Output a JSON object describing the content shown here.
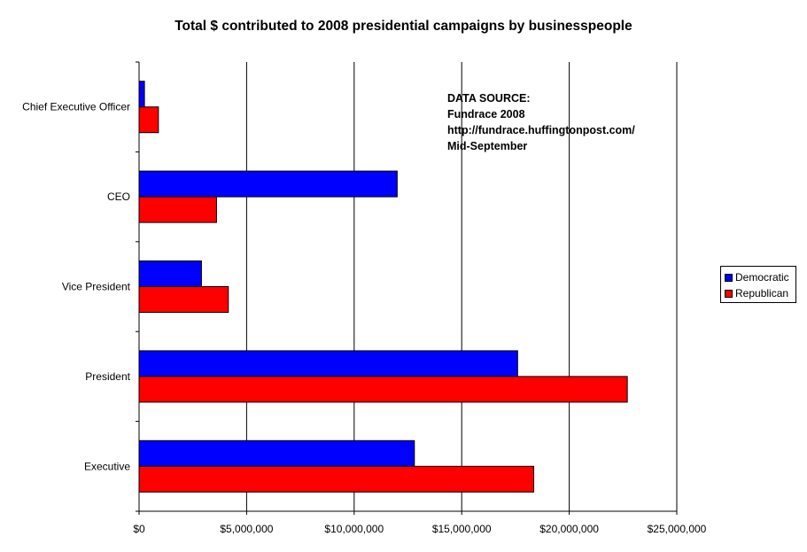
{
  "chart_data": {
    "type": "bar",
    "orientation": "horizontal",
    "title": "Total $ contributed to 2008 presidential campaigns by businesspeople",
    "categories": [
      "Chief Executive Officer",
      "CEO",
      "Vice President",
      "President",
      "Executive"
    ],
    "series": [
      {
        "name": "Democratic",
        "color": "#0000ff",
        "values": [
          250000,
          12000000,
          2900000,
          17600000,
          12800000
        ]
      },
      {
        "name": "Republican",
        "color": "#ff0000",
        "values": [
          900000,
          3600000,
          4150000,
          22700000,
          18350000
        ]
      }
    ],
    "xlim": [
      0,
      25000000
    ],
    "x_ticks": [
      0,
      5000000,
      10000000,
      15000000,
      20000000,
      25000000
    ],
    "x_tick_labels": [
      "$0",
      "$5,000,000",
      "$10,000,000",
      "$15,000,000",
      "$20,000,000",
      "$25,000,000"
    ],
    "grid": "vertical",
    "legend_position": "right",
    "annotation": {
      "lines": [
        "DATA SOURCE:",
        "Fundrace 2008",
        "http://fundrace.huffingtonpost.com/",
        "Mid-September"
      ]
    }
  }
}
